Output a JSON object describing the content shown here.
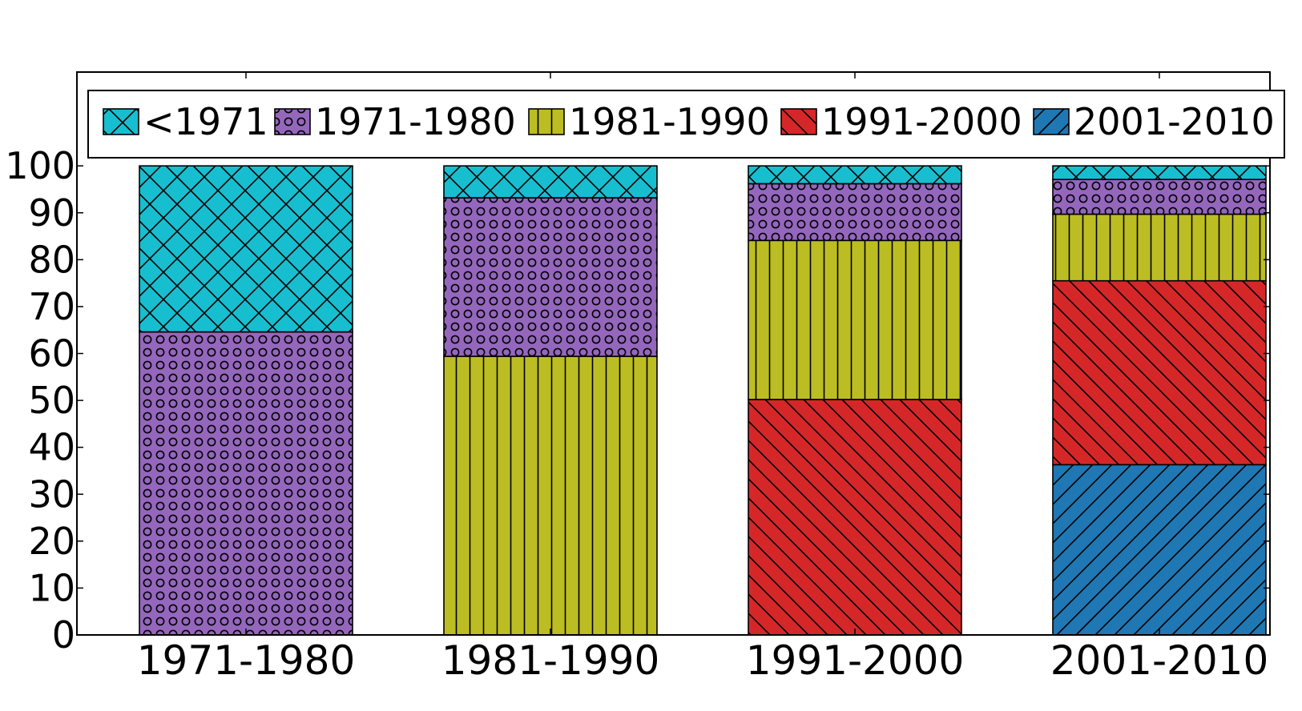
{
  "chart_data": {
    "type": "bar",
    "stacked": true,
    "title": "",
    "xlabel": "",
    "ylabel": "",
    "ylim": [
      0,
      120
    ],
    "y_ticks": [
      0,
      10,
      20,
      30,
      40,
      50,
      60,
      70,
      80,
      90,
      100
    ],
    "categories": [
      "1971-1980",
      "1981-1990",
      "1991-2000",
      "2001-2010"
    ],
    "series": [
      {
        "name": "2001-2010",
        "color": "#1f77b4",
        "pattern": "diagonal-up",
        "values": [
          0,
          0,
          0,
          36.3
        ]
      },
      {
        "name": "1991-2000",
        "color": "#d62728",
        "pattern": "diagonal-down",
        "values": [
          0,
          0,
          50.2,
          39.2
        ]
      },
      {
        "name": "1981-1990",
        "color": "#bcbd22",
        "pattern": "vertical",
        "values": [
          0,
          59.4,
          33.9,
          14.2
        ]
      },
      {
        "name": "1971-1980",
        "color": "#9467bd",
        "pattern": "circles",
        "values": [
          64.6,
          33.8,
          12.1,
          7.4
        ]
      },
      {
        "name": "<1971",
        "color": "#17becf",
        "pattern": "crosshatch",
        "values": [
          35.4,
          6.8,
          3.8,
          2.9
        ]
      }
    ],
    "legend_order": [
      "<1971",
      "1971-1980",
      "1981-1990",
      "1991-2000",
      "2001-2010"
    ],
    "legend_position": "top",
    "grid": false
  }
}
